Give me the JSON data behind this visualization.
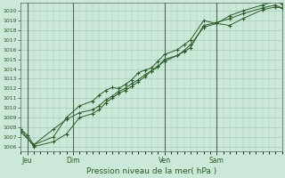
{
  "xlabel": "Pression niveau de la mer( hPa )",
  "bg_color": "#cce8d8",
  "plot_bg_color": "#cce8d8",
  "grid_color": "#aaccbb",
  "line_color": "#2a5c2a",
  "tick_label_color": "#2a5c2a",
  "xlabel_color": "#2a5c2a",
  "vline_color": "#556655",
  "ylim": [
    1005.5,
    1020.8
  ],
  "yticks": [
    1006,
    1007,
    1008,
    1009,
    1010,
    1011,
    1012,
    1013,
    1014,
    1015,
    1016,
    1017,
    1018,
    1019,
    1020
  ],
  "xtick_labels": [
    "Jeu",
    "Dim",
    "Ven",
    "Sam"
  ],
  "xtick_positions": [
    1,
    8,
    22,
    30
  ],
  "xlim": [
    0,
    40
  ],
  "series1_x": [
    0,
    1,
    2,
    5,
    7,
    9,
    11,
    12,
    13,
    14,
    15,
    16,
    17,
    18,
    19,
    20,
    21,
    22,
    24,
    25,
    26,
    28,
    30,
    32,
    34,
    37,
    39,
    40
  ],
  "series1_y": [
    1007.8,
    1007.2,
    1006.2,
    1007.0,
    1009.0,
    1010.2,
    1010.7,
    1011.3,
    1011.8,
    1012.1,
    1012.0,
    1012.4,
    1012.9,
    1013.6,
    1013.9,
    1014.1,
    1014.8,
    1015.5,
    1016.0,
    1016.5,
    1017.0,
    1019.0,
    1018.7,
    1018.5,
    1019.2,
    1020.1,
    1020.4,
    1020.3
  ],
  "series2_x": [
    0,
    2,
    5,
    7,
    9,
    11,
    12,
    13,
    14,
    15,
    16,
    17,
    18,
    19,
    20,
    21,
    22,
    24,
    25,
    26,
    28,
    30,
    32,
    34,
    37,
    39,
    40
  ],
  "series2_y": [
    1007.8,
    1006.0,
    1006.5,
    1007.3,
    1009.0,
    1009.4,
    1009.8,
    1010.5,
    1011.0,
    1011.5,
    1011.8,
    1012.2,
    1012.7,
    1013.2,
    1013.8,
    1014.2,
    1015.0,
    1015.4,
    1015.8,
    1016.2,
    1018.5,
    1018.8,
    1019.2,
    1019.7,
    1020.3,
    1020.6,
    1020.3
  ],
  "series3_x": [
    0,
    2,
    5,
    7,
    9,
    11,
    12,
    13,
    14,
    15,
    16,
    17,
    18,
    19,
    20,
    21,
    22,
    24,
    25,
    26,
    28,
    30,
    32,
    34,
    37,
    39,
    40
  ],
  "series3_y": [
    1007.5,
    1006.2,
    1007.8,
    1008.8,
    1009.5,
    1009.8,
    1010.2,
    1010.8,
    1011.2,
    1011.7,
    1012.0,
    1012.5,
    1012.9,
    1013.4,
    1013.8,
    1014.3,
    1014.8,
    1015.4,
    1015.9,
    1016.5,
    1018.3,
    1018.7,
    1019.5,
    1020.0,
    1020.6,
    1021.0,
    1020.7
  ]
}
